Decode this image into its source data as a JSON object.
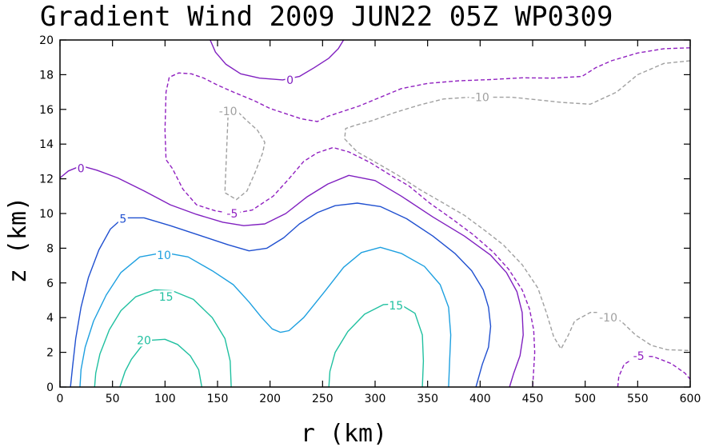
{
  "chart_data": {
    "type": "contour",
    "title": "Gradient Wind 2009 JUN22 05Z  WP0309",
    "xlabel": "r (km)",
    "ylabel": "z (km)",
    "xlim": [
      0,
      600
    ],
    "ylim": [
      0,
      20
    ],
    "x_ticks": [
      0,
      50,
      100,
      150,
      200,
      250,
      300,
      350,
      400,
      450,
      500,
      550,
      600
    ],
    "y_ticks": [
      0,
      2,
      4,
      6,
      8,
      10,
      12,
      14,
      16,
      18,
      20
    ],
    "x_tick_labels": [
      "0",
      "50",
      "100",
      "150",
      "200",
      "250",
      "300",
      "350",
      "400",
      "450",
      "500",
      "550",
      "600"
    ],
    "y_tick_labels": [
      "0",
      "2",
      "4",
      "6",
      "8",
      "10",
      "12",
      "14",
      "16",
      "18",
      "20"
    ],
    "colors": {
      "c20": "#20c0a0",
      "c15": "#20c0a0",
      "c10": "#1ea0e0",
      "c5": "#2050d0",
      "c0": "#8020c0",
      "cm5": "#9020c0",
      "cm10": "#a0a0a0"
    },
    "contours": [
      {
        "level": 20,
        "label": "20",
        "style": "solid",
        "color_key": "c20",
        "label_at": [
          80,
          2.7
        ],
        "points": [
          [
            57,
            0
          ],
          [
            62,
            0.9
          ],
          [
            68,
            1.6
          ],
          [
            77,
            2.3
          ],
          [
            87,
            2.7
          ],
          [
            100,
            2.75
          ],
          [
            112,
            2.45
          ],
          [
            124,
            1.8
          ],
          [
            132,
            1.0
          ],
          [
            135,
            0
          ]
        ]
      },
      {
        "level": 15,
        "label": "15",
        "style": "solid",
        "color_key": "c15",
        "label_at": [
          101,
          5.2
        ],
        "points": [
          [
            33,
            0
          ],
          [
            34,
            0.8
          ],
          [
            38,
            1.9
          ],
          [
            47,
            3.3
          ],
          [
            58,
            4.4
          ],
          [
            72,
            5.2
          ],
          [
            90,
            5.6
          ],
          [
            107,
            5.55
          ],
          [
            127,
            5.05
          ],
          [
            145,
            4.0
          ],
          [
            157,
            2.8
          ],
          [
            162,
            1.5
          ],
          [
            163,
            0
          ]
        ]
      },
      {
        "level": 15,
        "label": "15",
        "style": "solid",
        "color_key": "c15",
        "label_at": [
          320,
          4.7
        ],
        "points": [
          [
            256,
            0
          ],
          [
            257,
            0.9
          ],
          [
            262,
            2.0
          ],
          [
            274,
            3.2
          ],
          [
            290,
            4.2
          ],
          [
            308,
            4.75
          ],
          [
            323,
            4.8
          ],
          [
            338,
            4.25
          ],
          [
            345,
            3.0
          ],
          [
            346,
            1.5
          ],
          [
            345,
            0
          ]
        ]
      },
      {
        "level": 10,
        "label": "10",
        "style": "solid",
        "color_key": "c10",
        "label_at": [
          99,
          7.6
        ],
        "points": [
          [
            19,
            0
          ],
          [
            20,
            1.0
          ],
          [
            24,
            2.3
          ],
          [
            32,
            3.8
          ],
          [
            44,
            5.3
          ],
          [
            58,
            6.6
          ],
          [
            76,
            7.5
          ],
          [
            99,
            7.75
          ],
          [
            122,
            7.5
          ],
          [
            145,
            6.7
          ],
          [
            165,
            5.9
          ],
          [
            180,
            4.9
          ],
          [
            192,
            4.0
          ],
          [
            202,
            3.35
          ],
          [
            210,
            3.15
          ],
          [
            218,
            3.25
          ],
          [
            232,
            4.0
          ],
          [
            252,
            5.5
          ],
          [
            270,
            6.9
          ],
          [
            287,
            7.75
          ],
          [
            305,
            8.05
          ],
          [
            325,
            7.7
          ],
          [
            347,
            6.95
          ],
          [
            362,
            5.9
          ],
          [
            370,
            4.6
          ],
          [
            372,
            3.0
          ],
          [
            371,
            1.5
          ],
          [
            370,
            0
          ]
        ]
      },
      {
        "level": 5,
        "label": "5",
        "style": "solid",
        "color_key": "c5",
        "label_at": [
          60,
          9.7
        ],
        "points": [
          [
            10,
            0
          ],
          [
            12,
            1.2
          ],
          [
            15,
            2.8
          ],
          [
            20,
            4.6
          ],
          [
            27,
            6.3
          ],
          [
            37,
            7.9
          ],
          [
            48,
            9.1
          ],
          [
            60,
            9.75
          ],
          [
            80,
            9.75
          ],
          [
            105,
            9.3
          ],
          [
            135,
            8.7
          ],
          [
            160,
            8.2
          ],
          [
            180,
            7.85
          ],
          [
            197,
            8.0
          ],
          [
            213,
            8.6
          ],
          [
            228,
            9.4
          ],
          [
            245,
            10.05
          ],
          [
            262,
            10.45
          ],
          [
            283,
            10.6
          ],
          [
            305,
            10.4
          ],
          [
            330,
            9.7
          ],
          [
            355,
            8.7
          ],
          [
            376,
            7.7
          ],
          [
            392,
            6.7
          ],
          [
            403,
            5.6
          ],
          [
            408,
            4.6
          ],
          [
            410,
            3.5
          ],
          [
            408,
            2.3
          ],
          [
            402,
            1.3
          ],
          [
            396,
            0
          ]
        ]
      },
      {
        "level": 0,
        "label": "0",
        "style": "solid",
        "color_key": "c0",
        "label_at": [
          20,
          12.6
        ],
        "points": [
          [
            0,
            12.05
          ],
          [
            8,
            12.45
          ],
          [
            20,
            12.75
          ],
          [
            35,
            12.5
          ],
          [
            55,
            12.05
          ],
          [
            80,
            11.3
          ],
          [
            105,
            10.5
          ],
          [
            130,
            9.95
          ],
          [
            155,
            9.5
          ],
          [
            175,
            9.3
          ],
          [
            195,
            9.4
          ],
          [
            215,
            10.0
          ],
          [
            235,
            10.95
          ],
          [
            255,
            11.7
          ],
          [
            275,
            12.2
          ],
          [
            300,
            11.9
          ],
          [
            325,
            11.0
          ],
          [
            355,
            9.8
          ],
          [
            385,
            8.7
          ],
          [
            410,
            7.6
          ],
          [
            425,
            6.6
          ],
          [
            435,
            5.5
          ],
          [
            440,
            4.3
          ],
          [
            441,
            3.0
          ],
          [
            438,
            1.8
          ],
          [
            432,
            0.8
          ],
          [
            428,
            0
          ]
        ]
      },
      {
        "level": 0,
        "label": "0",
        "style": "solid",
        "color_key": "c0",
        "label_at": [
          219,
          17.7
        ],
        "points": [
          [
            143,
            20
          ],
          [
            148,
            19.3
          ],
          [
            158,
            18.6
          ],
          [
            172,
            18.05
          ],
          [
            190,
            17.8
          ],
          [
            212,
            17.7
          ],
          [
            228,
            17.9
          ],
          [
            242,
            18.4
          ],
          [
            256,
            18.95
          ],
          [
            265,
            19.5
          ],
          [
            270,
            20
          ]
        ]
      },
      {
        "level": -5,
        "label": "-5",
        "style": "dashed",
        "color_key": "cm5",
        "label_at": [
          164,
          10.0
        ],
        "points": [
          [
            600,
            19.55
          ],
          [
            575,
            19.5
          ],
          [
            550,
            19.25
          ],
          [
            525,
            18.8
          ],
          [
            510,
            18.4
          ],
          [
            497,
            17.9
          ],
          [
            470,
            17.8
          ],
          [
            440,
            17.82
          ],
          [
            410,
            17.72
          ],
          [
            380,
            17.65
          ],
          [
            350,
            17.5
          ],
          [
            325,
            17.2
          ],
          [
            305,
            16.7
          ],
          [
            285,
            16.2
          ],
          [
            270,
            15.9
          ],
          [
            255,
            15.6
          ],
          [
            245,
            15.3
          ],
          [
            230,
            15.45
          ],
          [
            215,
            15.75
          ],
          [
            200,
            16.05
          ],
          [
            185,
            16.5
          ],
          [
            165,
            17.0
          ],
          [
            150,
            17.4
          ],
          [
            137,
            17.8
          ],
          [
            125,
            18.05
          ],
          [
            113,
            18.1
          ],
          [
            104,
            17.85
          ],
          [
            101,
            17.0
          ],
          [
            100,
            14.8
          ],
          [
            101,
            13.1
          ],
          [
            107,
            12.6
          ],
          [
            117,
            11.4
          ],
          [
            130,
            10.5
          ],
          [
            148,
            10.15
          ],
          [
            164,
            10.0
          ],
          [
            183,
            10.2
          ],
          [
            203,
            11.0
          ],
          [
            218,
            12.0
          ],
          [
            232,
            13.0
          ],
          [
            245,
            13.5
          ],
          [
            260,
            13.8
          ],
          [
            275,
            13.55
          ],
          [
            295,
            12.95
          ],
          [
            315,
            12.2
          ],
          [
            332,
            11.6
          ],
          [
            352,
            10.6
          ],
          [
            373,
            9.7
          ],
          [
            393,
            8.8
          ],
          [
            412,
            7.8
          ],
          [
            427,
            6.8
          ],
          [
            440,
            5.6
          ],
          [
            447,
            4.5
          ],
          [
            451,
            3.3
          ],
          [
            452,
            2.0
          ],
          [
            451,
            1.0
          ],
          [
            450,
            0
          ]
        ]
      },
      {
        "level": -5,
        "label": "-5",
        "style": "dashed",
        "color_key": "cm5",
        "label_at": [
          551,
          1.8
        ],
        "points": [
          [
            531,
            0
          ],
          [
            532,
            0.6
          ],
          [
            537,
            1.3
          ],
          [
            550,
            1.8
          ],
          [
            565,
            1.75
          ],
          [
            582,
            1.35
          ],
          [
            595,
            0.8
          ],
          [
            600,
            0.45
          ]
        ]
      },
      {
        "level": -10,
        "label": "-10",
        "style": "dashed",
        "color_key": "cm10",
        "label_at": [
          160,
          15.9
        ],
        "points": [
          [
            160,
            15.6
          ],
          [
            157,
            11.2
          ],
          [
            168,
            10.8
          ],
          [
            178,
            11.3
          ],
          [
            186,
            12.4
          ],
          [
            193,
            13.5
          ],
          [
            195,
            14.1
          ],
          [
            188,
            14.8
          ],
          [
            177,
            15.4
          ],
          [
            167,
            16.0
          ],
          [
            160,
            15.6
          ]
        ]
      },
      {
        "level": -10,
        "label": "-10",
        "style": "dashed",
        "color_key": "cm10",
        "label_at": [
          400,
          16.7
        ],
        "points": [
          [
            600,
            18.8
          ],
          [
            575,
            18.65
          ],
          [
            550,
            18.0
          ],
          [
            530,
            17.0
          ],
          [
            505,
            16.3
          ],
          [
            478,
            16.4
          ],
          [
            455,
            16.55
          ],
          [
            430,
            16.7
          ],
          [
            390,
            16.7
          ],
          [
            365,
            16.6
          ],
          [
            342,
            16.25
          ],
          [
            318,
            15.8
          ],
          [
            297,
            15.35
          ],
          [
            282,
            15.1
          ],
          [
            272,
            14.9
          ],
          [
            271,
            14.3
          ],
          [
            283,
            13.55
          ],
          [
            302,
            12.9
          ],
          [
            322,
            12.2
          ],
          [
            342,
            11.4
          ],
          [
            365,
            10.6
          ],
          [
            385,
            9.9
          ],
          [
            405,
            9.0
          ],
          [
            422,
            8.2
          ],
          [
            440,
            7.05
          ],
          [
            455,
            5.7
          ],
          [
            463,
            4.3
          ],
          [
            470,
            2.9
          ],
          [
            477,
            2.2
          ],
          [
            484,
            3.0
          ],
          [
            490,
            3.8
          ],
          [
            505,
            4.3
          ],
          [
            520,
            4.3
          ],
          [
            535,
            3.75
          ],
          [
            548,
            3.0
          ],
          [
            563,
            2.4
          ],
          [
            578,
            2.15
          ],
          [
            600,
            2.1
          ]
        ]
      },
      {
        "level": -10,
        "label": "-10",
        "style": "dashed",
        "color_key": "cm10",
        "label_at": [
          522,
          4.0
        ],
        "points": []
      }
    ]
  }
}
